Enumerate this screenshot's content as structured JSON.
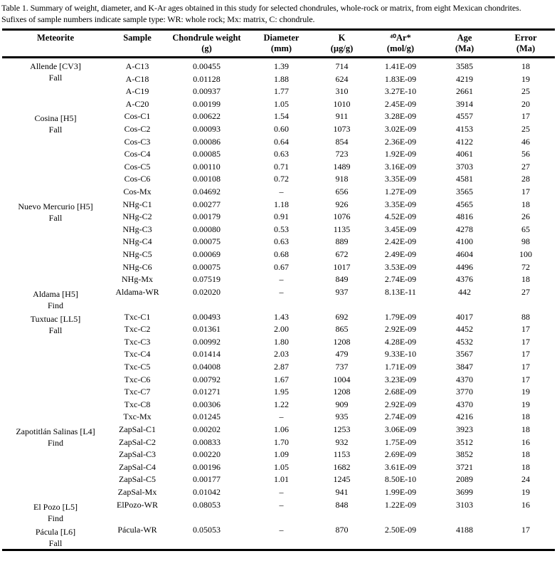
{
  "colors": {
    "background": "#ffffff",
    "text": "#000000",
    "rule": "#000000"
  },
  "caption": {
    "line1": "Table 1. Summary of weight, diameter, and K-Ar ages obtained in this study for selected chondrules, whole-rock or matrix, from eight Mexican chondrites.",
    "line2": "Sufixes of sample numbers indicate sample type: WR: whole rock; Mx: matrix, C: chondrule."
  },
  "table": {
    "columns": [
      {
        "label": "Meteorite",
        "unit": ""
      },
      {
        "label": "Sample",
        "unit": ""
      },
      {
        "label": "Chondrule weight",
        "unit": "(g)"
      },
      {
        "label": "Diameter",
        "unit": "(mm)"
      },
      {
        "label": "K",
        "unit": "(µg/g)"
      },
      {
        "label": "⁴⁰Ar*",
        "unit": "(mol/g)"
      },
      {
        "label": "Age",
        "unit": "(Ma)"
      },
      {
        "label": "Error",
        "unit": "(Ma)"
      }
    ],
    "missing_value": "–",
    "groups": [
      {
        "meteorite": "Allende [CV3]",
        "type": "Fall",
        "rows": [
          {
            "sample": "A-C13",
            "weight": "0.00455",
            "diameter": "1.39",
            "k": "714",
            "ar": "1.41E-09",
            "age": "3585",
            "error": "18"
          },
          {
            "sample": "A-C18",
            "weight": "0.01128",
            "diameter": "1.88",
            "k": "624",
            "ar": "1.83E-09",
            "age": "4219",
            "error": "19"
          },
          {
            "sample": "A-C19",
            "weight": "0.00937",
            "diameter": "1.77",
            "k": "310",
            "ar": "3.27E-10",
            "age": "2661",
            "error": "25"
          },
          {
            "sample": "A-C20",
            "weight": "0.00199",
            "diameter": "1.05",
            "k": "1010",
            "ar": "2.45E-09",
            "age": "3914",
            "error": "20"
          }
        ]
      },
      {
        "meteorite": "Cosina [H5]",
        "type": "Fall",
        "rows": [
          {
            "sample": "Cos-C1",
            "weight": "0.00622",
            "diameter": "1.54",
            "k": "911",
            "ar": "3.28E-09",
            "age": "4557",
            "error": "17"
          },
          {
            "sample": "Cos-C2",
            "weight": "0.00093",
            "diameter": "0.60",
            "k": "1073",
            "ar": "3.02E-09",
            "age": "4153",
            "error": "25"
          },
          {
            "sample": "Cos-C3",
            "weight": "0.00086",
            "diameter": "0.64",
            "k": "854",
            "ar": "2.36E-09",
            "age": "4122",
            "error": "46"
          },
          {
            "sample": "Cos-C4",
            "weight": "0.00085",
            "diameter": "0.63",
            "k": "723",
            "ar": "1.92E-09",
            "age": "4061",
            "error": "56"
          },
          {
            "sample": "Cos-C5",
            "weight": "0.00110",
            "diameter": "0.71",
            "k": "1489",
            "ar": "3.16E-09",
            "age": "3703",
            "error": "27"
          },
          {
            "sample": "Cos-C6",
            "weight": "0.00108",
            "diameter": "0.72",
            "k": "918",
            "ar": "3.35E-09",
            "age": "4581",
            "error": "28"
          },
          {
            "sample": "Cos-Mx",
            "weight": "0.04692",
            "diameter": "–",
            "k": "656",
            "ar": "1.27E-09",
            "age": "3565",
            "error": "17"
          }
        ]
      },
      {
        "meteorite": "Nuevo Mercurio [H5]",
        "type": "Fall",
        "rows": [
          {
            "sample": "NHg-C1",
            "weight": "0.00277",
            "diameter": "1.18",
            "k": "926",
            "ar": "3.35E-09",
            "age": "4565",
            "error": "18"
          },
          {
            "sample": "NHg-C2",
            "weight": "0.00179",
            "diameter": "0.91",
            "k": "1076",
            "ar": "4.52E-09",
            "age": "4816",
            "error": "26"
          },
          {
            "sample": "NHg-C3",
            "weight": "0.00080",
            "diameter": "0.53",
            "k": "1135",
            "ar": "3.45E-09",
            "age": "4278",
            "error": "65"
          },
          {
            "sample": "NHg-C4",
            "weight": "0.00075",
            "diameter": "0.63",
            "k": "889",
            "ar": "2.42E-09",
            "age": "4100",
            "error": "98"
          },
          {
            "sample": "NHg-C5",
            "weight": "0.00069",
            "diameter": "0.68",
            "k": "672",
            "ar": "2.49E-09",
            "age": "4604",
            "error": "100"
          },
          {
            "sample": "NHg-C6",
            "weight": "0.00075",
            "diameter": "0.67",
            "k": "1017",
            "ar": "3.53E-09",
            "age": "4496",
            "error": "72"
          },
          {
            "sample": "NHg-Mx",
            "weight": "0.07519",
            "diameter": "–",
            "k": "849",
            "ar": "2.74E-09",
            "age": "4376",
            "error": "18"
          }
        ]
      },
      {
        "meteorite": "Aldama [H5]",
        "type": "Find",
        "rows": [
          {
            "sample": "Aldama-WR",
            "weight": "0.02020",
            "diameter": "–",
            "k": "937",
            "ar": "8.13E-11",
            "age": "442",
            "error": "27"
          }
        ]
      },
      {
        "meteorite": "Tuxtuac [LL5]",
        "type": "Fall",
        "rows": [
          {
            "sample": "Txc-C1",
            "weight": "0.00493",
            "diameter": "1.43",
            "k": "692",
            "ar": "1.79E-09",
            "age": "4017",
            "error": "88"
          },
          {
            "sample": "Txc-C2",
            "weight": "0.01361",
            "diameter": "2.00",
            "k": "865",
            "ar": "2.92E-09",
            "age": "4452",
            "error": "17"
          },
          {
            "sample": "Txc-C3",
            "weight": "0.00992",
            "diameter": "1.80",
            "k": "1208",
            "ar": "4.28E-09",
            "age": "4532",
            "error": "17"
          },
          {
            "sample": "Txc-C4",
            "weight": "0.01414",
            "diameter": "2.03",
            "k": "479",
            "ar": "9.33E-10",
            "age": "3567",
            "error": "17"
          },
          {
            "sample": "Txc-C5",
            "weight": "0.04008",
            "diameter": "2.87",
            "k": "737",
            "ar": "1.71E-09",
            "age": "3847",
            "error": "17"
          },
          {
            "sample": "Txc-C6",
            "weight": "0.00792",
            "diameter": "1.67",
            "k": "1004",
            "ar": "3.23E-09",
            "age": "4370",
            "error": "17"
          },
          {
            "sample": "Txc-C7",
            "weight": "0.01271",
            "diameter": "1.95",
            "k": "1208",
            "ar": "2.68E-09",
            "age": "3770",
            "error": "19"
          },
          {
            "sample": "Txc-C8",
            "weight": "0.00306",
            "diameter": "1.22",
            "k": "909",
            "ar": "2.92E-09",
            "age": "4370",
            "error": "19"
          },
          {
            "sample": "Txc-Mx",
            "weight": "0.01245",
            "diameter": "–",
            "k": "935",
            "ar": "2.74E-09",
            "age": "4216",
            "error": "18"
          }
        ]
      },
      {
        "meteorite": "Zapotitlán Salinas [L4]",
        "type": "Find",
        "rows": [
          {
            "sample": "ZapSal-C1",
            "weight": "0.00202",
            "diameter": "1.06",
            "k": "1253",
            "ar": "3.06E-09",
            "age": "3923",
            "error": "18"
          },
          {
            "sample": "ZapSal-C2",
            "weight": "0.00833",
            "diameter": "1.70",
            "k": "932",
            "ar": "1.75E-09",
            "age": "3512",
            "error": "16"
          },
          {
            "sample": "ZapSal-C3",
            "weight": "0.00220",
            "diameter": "1.09",
            "k": "1153",
            "ar": "2.69E-09",
            "age": "3852",
            "error": "18"
          },
          {
            "sample": "ZapSal-C4",
            "weight": "0.00196",
            "diameter": "1.05",
            "k": "1682",
            "ar": "3.61E-09",
            "age": "3721",
            "error": "18"
          },
          {
            "sample": "ZapSal-C5",
            "weight": "0.00177",
            "diameter": "1.01",
            "k": "1245",
            "ar": "8.50E-10",
            "age": "2089",
            "error": "24"
          },
          {
            "sample": "ZapSal-Mx",
            "weight": "0.01042",
            "diameter": "–",
            "k": "941",
            "ar": "1.99E-09",
            "age": "3699",
            "error": "19"
          }
        ]
      },
      {
        "meteorite": "El Pozo [L5]",
        "type": "Find",
        "rows": [
          {
            "sample": "ElPozo-WR",
            "weight": "0.08053",
            "diameter": "–",
            "k": "848",
            "ar": "1.22E-09",
            "age": "3103",
            "error": "16"
          }
        ]
      },
      {
        "meteorite": "Pácula [L6]",
        "type": "Fall",
        "rows": [
          {
            "sample": "Pácula-WR",
            "weight": "0.05053",
            "diameter": "–",
            "k": "870",
            "ar": "2.50E-09",
            "age": "4188",
            "error": "17"
          }
        ]
      }
    ]
  }
}
